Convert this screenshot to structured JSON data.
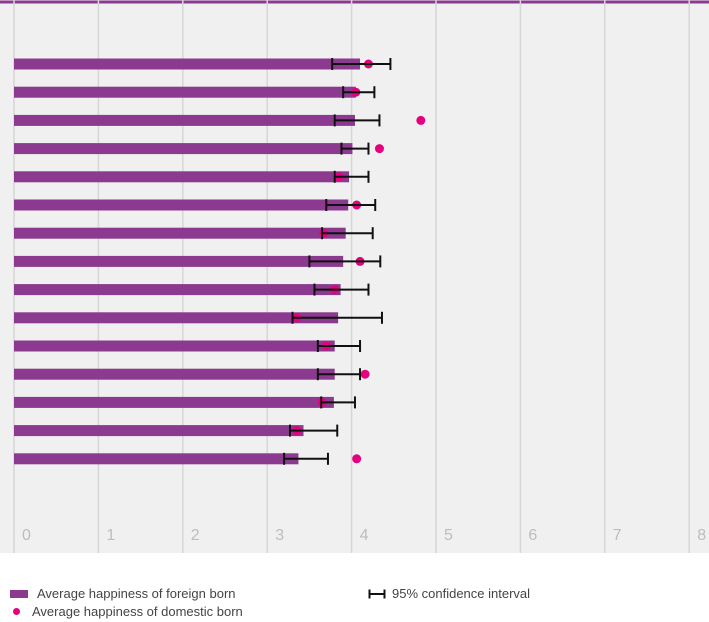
{
  "chart_data": {
    "type": "bar",
    "orientation": "horizontal",
    "xlim": [
      0,
      8
    ],
    "x_ticks": [
      "0",
      "1",
      "2",
      "3",
      "4",
      "5",
      "6",
      "7",
      "8"
    ],
    "grid": true,
    "legend_position": "bottom",
    "categories_shown": false,
    "series": [
      {
        "name": "Average happiness of foreign born",
        "values": [
          4.1,
          4.05,
          4.04,
          4.01,
          3.97,
          3.96,
          3.93,
          3.9,
          3.87,
          3.84,
          3.8,
          3.8,
          3.79,
          3.43,
          3.37
        ]
      },
      {
        "name": "95% confidence interval",
        "lower": [
          3.77,
          3.9,
          3.8,
          3.88,
          3.8,
          3.7,
          3.65,
          3.5,
          3.56,
          3.3,
          3.6,
          3.6,
          3.64,
          3.27,
          3.2
        ],
        "upper": [
          4.46,
          4.27,
          4.33,
          4.2,
          4.2,
          4.28,
          4.25,
          4.34,
          4.2,
          4.36,
          4.1,
          4.1,
          4.04,
          3.83,
          3.72
        ]
      },
      {
        "name": "Average happiness of domestic born",
        "values": [
          4.2,
          4.05,
          4.82,
          4.33,
          3.85,
          4.06,
          3.67,
          4.1,
          3.8,
          3.35,
          3.7,
          4.16,
          3.65,
          3.35,
          4.06
        ]
      }
    ],
    "colors": {
      "bar": "#8b3a8f",
      "dot": "#e6007e",
      "ci": "#111111",
      "grid": "#d6d6d6",
      "tick": "#bdbdbd",
      "top_rule": "#8b3a8f"
    }
  },
  "legend": {
    "foreign": "Average happiness of foreign born",
    "domestic": "Average happiness of domestic born",
    "ci": "95% confidence interval"
  }
}
